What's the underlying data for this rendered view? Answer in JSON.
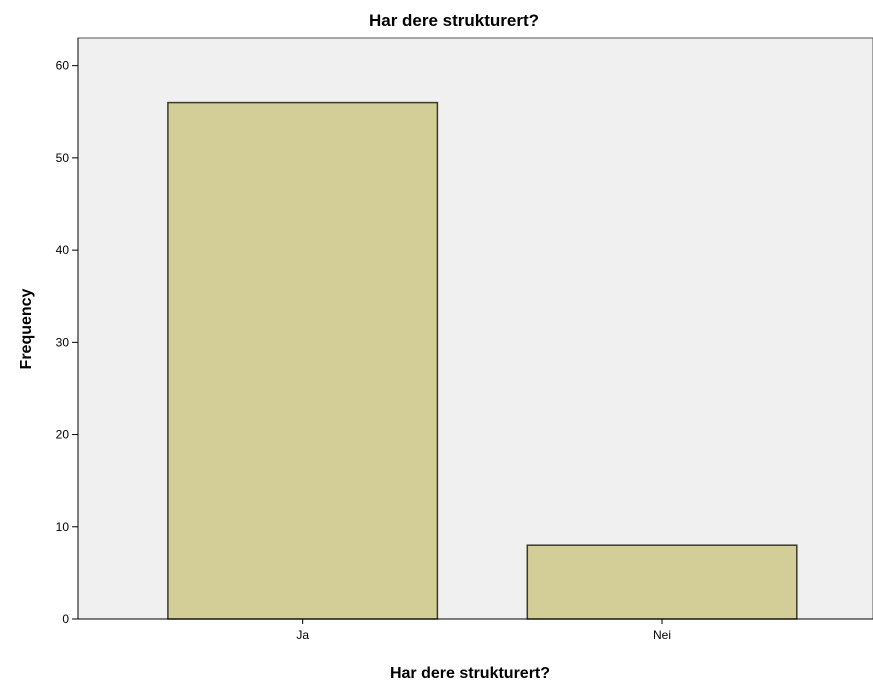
{
  "chart_data": {
    "type": "bar",
    "title": "Har dere strukturert?",
    "xlabel": "Har dere strukturert?",
    "ylabel": "Frequency",
    "categories": [
      "Ja",
      "Nei"
    ],
    "values": [
      56,
      8
    ],
    "ylim": [
      0,
      63
    ],
    "yticks": [
      0,
      10,
      20,
      30,
      40,
      50,
      60
    ],
    "grid": false,
    "legend": "none",
    "colors": {
      "bar_fill": "#D3CE97",
      "bar_stroke": "#3A3A2A",
      "plot_background": "#F0F0F0",
      "axis": "#000000"
    }
  }
}
